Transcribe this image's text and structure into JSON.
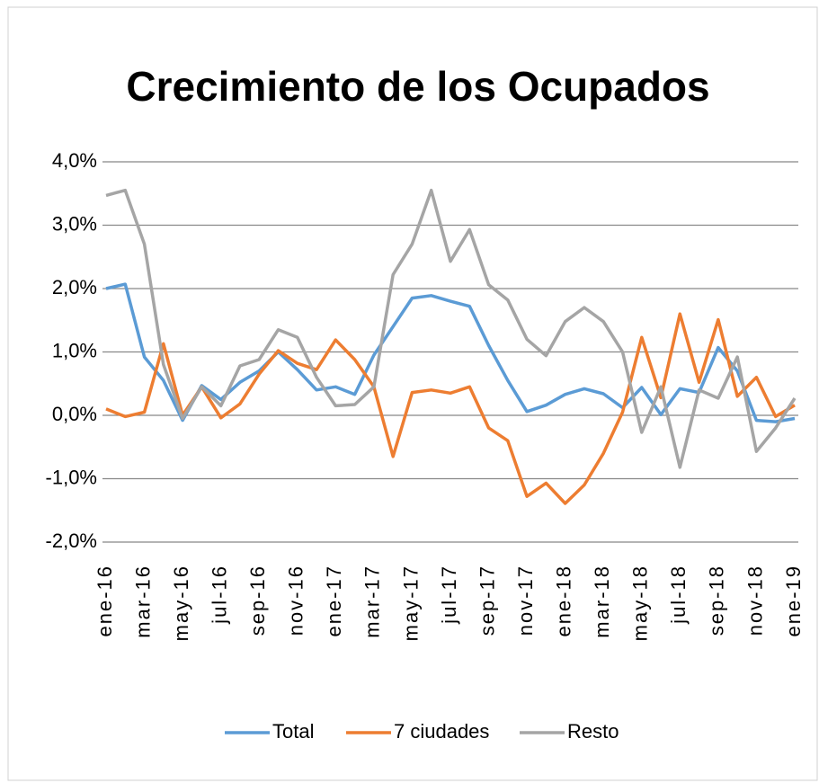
{
  "chart_data": {
    "type": "line",
    "title": "Crecimiento de los Ocupados",
    "categories": [
      "ene-16",
      null,
      "mar-16",
      null,
      "may-16",
      null,
      "jul-16",
      null,
      "sep-16",
      null,
      "nov-16",
      null,
      "ene-17",
      null,
      "mar-17",
      null,
      "may-17",
      null,
      "jul-17",
      null,
      "sep-17",
      null,
      "nov-17",
      null,
      "ene-18",
      null,
      "mar-18",
      null,
      "may-18",
      null,
      "jul-18",
      null,
      "sep-18",
      null,
      "nov-18",
      null,
      "ene-19"
    ],
    "series": [
      {
        "name": "Total",
        "color": "#5b9bd5",
        "values": [
          2.0,
          2.07,
          0.92,
          0.55,
          -0.08,
          0.47,
          0.25,
          0.52,
          0.7,
          1.0,
          0.72,
          0.4,
          0.45,
          0.33,
          0.95,
          1.4,
          1.85,
          1.89,
          1.8,
          1.72,
          1.1,
          0.55,
          0.06,
          0.16,
          0.33,
          0.42,
          0.34,
          0.12,
          0.44,
          0.01,
          0.42,
          0.36,
          1.07,
          0.7,
          -0.08,
          -0.1,
          -0.05
        ]
      },
      {
        "name": "7 ciudades",
        "color": "#ed7d31",
        "values": [
          0.1,
          -0.02,
          0.05,
          1.13,
          0.0,
          0.45,
          -0.04,
          0.18,
          0.65,
          1.02,
          0.82,
          0.72,
          1.19,
          0.88,
          0.45,
          -0.65,
          0.36,
          0.4,
          0.35,
          0.45,
          -0.2,
          -0.4,
          -1.28,
          -1.07,
          -1.39,
          -1.1,
          -0.6,
          0.05,
          1.23,
          0.28,
          1.6,
          0.52,
          1.51,
          0.3,
          0.6,
          -0.02,
          0.16
        ]
      },
      {
        "name": "Resto",
        "color": "#a5a5a5",
        "values": [
          3.47,
          3.55,
          2.7,
          0.8,
          -0.05,
          0.45,
          0.15,
          0.78,
          0.88,
          1.35,
          1.23,
          0.6,
          0.15,
          0.17,
          0.45,
          2.22,
          2.7,
          3.55,
          2.43,
          2.93,
          2.06,
          1.82,
          1.2,
          0.94,
          1.48,
          1.7,
          1.48,
          1.0,
          -0.27,
          0.45,
          -0.82,
          0.4,
          0.27,
          0.92,
          -0.57,
          -0.2,
          0.27
        ]
      }
    ],
    "ylim": [
      -2,
      4
    ],
    "yticks": [
      {
        "value": -2,
        "label": "-2,0%"
      },
      {
        "value": -1,
        "label": "-1,0%"
      },
      {
        "value": 0,
        "label": "0,0%"
      },
      {
        "value": 1,
        "label": "1,0%"
      },
      {
        "value": 2,
        "label": "2,0%"
      },
      {
        "value": 3,
        "label": "3,0%"
      },
      {
        "value": 4,
        "label": "4,0%"
      }
    ],
    "grid": true,
    "legend": "bottom"
  }
}
